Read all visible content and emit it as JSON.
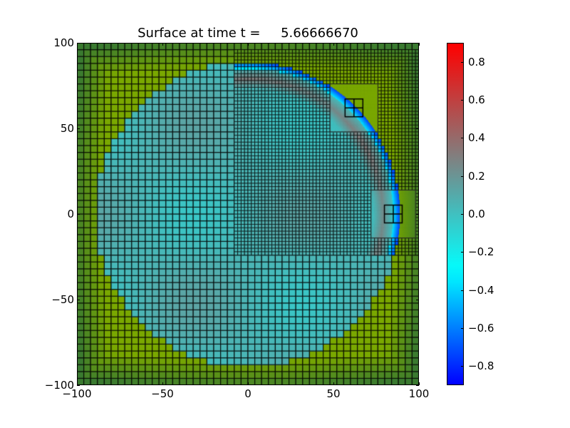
{
  "chart_data": {
    "type": "heatmap",
    "title": "Surface at time t =     5.66666670",
    "xlabel": "",
    "ylabel": "",
    "xlim": [
      -100,
      100
    ],
    "ylim": [
      -100,
      100
    ],
    "x_ticks": [
      "−100",
      "−50",
      "0",
      "50",
      "100"
    ],
    "x_tick_values": [
      -100,
      -50,
      0,
      50,
      100
    ],
    "y_ticks": [
      "100",
      "50",
      "0",
      "−50",
      "−100"
    ],
    "y_tick_values": [
      100,
      50,
      0,
      -50,
      -100
    ],
    "colorbar": {
      "range": [
        -0.9,
        0.9
      ],
      "ticks": [
        "0.8",
        "0.6",
        "0.4",
        "0.2",
        "0.0",
        "−0.2",
        "−0.4",
        "−0.6",
        "−0.8"
      ],
      "tick_values": [
        0.8,
        0.6,
        0.4,
        0.2,
        0.0,
        -0.2,
        -0.4,
        -0.6,
        -0.8
      ],
      "colors": [
        "#0000ff",
        "#00ffff",
        "#808080",
        "#ff0000"
      ]
    },
    "land_colors": [
      "#7aa800",
      "#3a7a30"
    ],
    "grid_levels": [
      {
        "level": 1,
        "dx": 4,
        "extent": [
          -100,
          100,
          -100,
          100
        ]
      },
      {
        "level": 2,
        "dx": 2,
        "extent": [
          -8,
          100,
          -24,
          96
        ]
      },
      {
        "level": 3,
        "dx": 0.4,
        "extent": [
          48,
          76,
          48,
          76
        ]
      },
      {
        "level": 3,
        "dx": 0.4,
        "extent": [
          72,
          98,
          -14,
          14
        ]
      }
    ]
  }
}
